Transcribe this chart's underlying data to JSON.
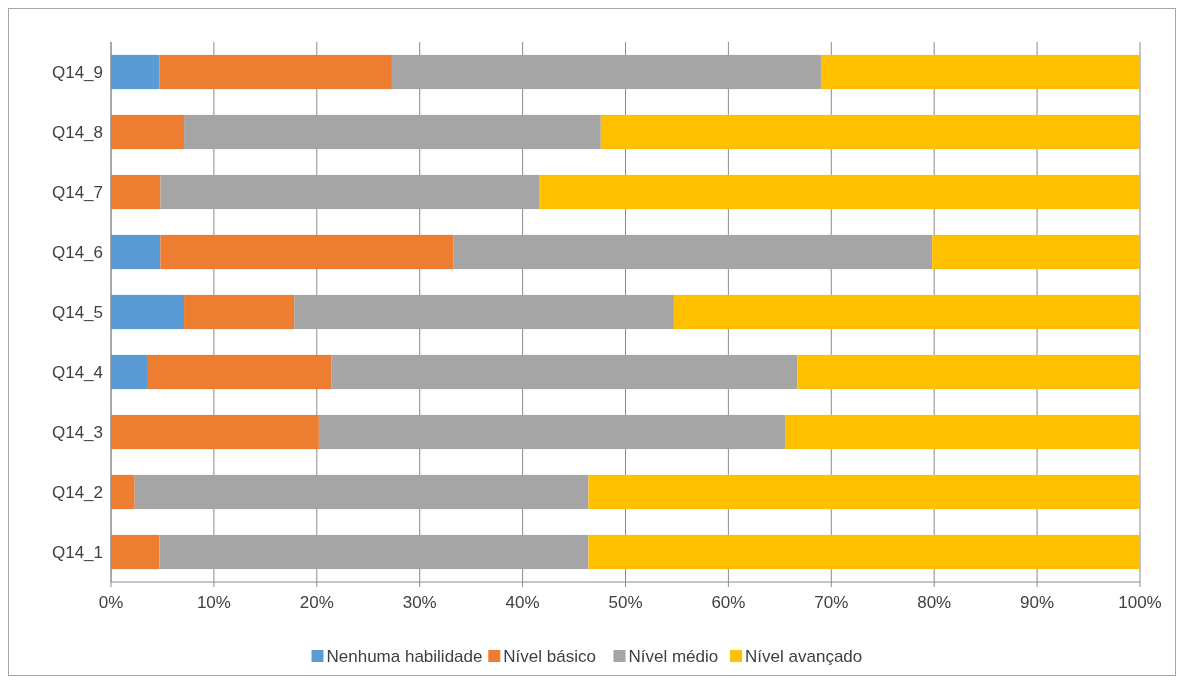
{
  "chart_data": {
    "type": "bar",
    "orientation": "horizontal",
    "stacked": true,
    "categories": [
      "Q14_9",
      "Q14_8",
      "Q14_7",
      "Q14_6",
      "Q14_5",
      "Q14_4",
      "Q14_3",
      "Q14_2",
      "Q14_1"
    ],
    "series": [
      {
        "name": "Nenhuma habilidade",
        "color": "#5b9bd5",
        "values": [
          4.7,
          0,
          0,
          4.8,
          7.1,
          3.5,
          0,
          0,
          0
        ]
      },
      {
        "name": "Nível básico",
        "color": "#ed7d31",
        "values": [
          22.6,
          7.1,
          4.8,
          28.5,
          10.7,
          17.9,
          20.2,
          2.3,
          4.7
        ]
      },
      {
        "name": "Nível médio",
        "color": "#a5a5a5",
        "values": [
          41.7,
          40.5,
          36.8,
          46.5,
          36.9,
          45.3,
          45.3,
          44.1,
          41.7
        ]
      },
      {
        "name": "Nível avançado",
        "color": "#ffc000",
        "values": [
          31.0,
          52.4,
          58.4,
          20.2,
          45.3,
          33.3,
          34.5,
          53.6,
          53.6
        ]
      }
    ],
    "xlim": [
      0,
      100
    ],
    "xticks": [
      {
        "value": 0,
        "label": "0%"
      },
      {
        "value": 10,
        "label": "10%"
      },
      {
        "value": 20,
        "label": "20%"
      },
      {
        "value": 30,
        "label": "30%"
      },
      {
        "value": 40,
        "label": "40%"
      },
      {
        "value": 50,
        "label": "50%"
      },
      {
        "value": 60,
        "label": "60%"
      },
      {
        "value": 70,
        "label": "70%"
      },
      {
        "value": 80,
        "label": "80%"
      },
      {
        "value": 90,
        "label": "90%"
      },
      {
        "value": 100,
        "label": "100%"
      }
    ],
    "grid": "x",
    "legend": "bottom"
  }
}
